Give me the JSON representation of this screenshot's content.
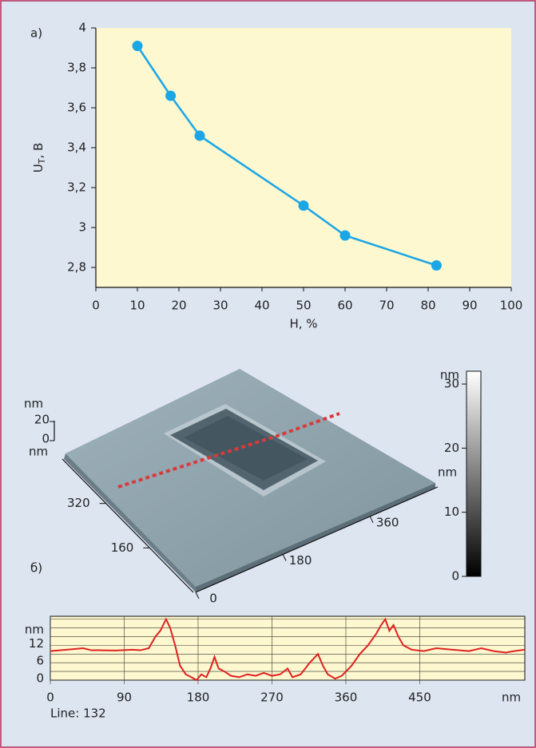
{
  "panel_a_label": "а)",
  "panel_b_label": "б)",
  "chart_data": [
    {
      "type": "line",
      "ylabel": [
        "U",
        "T",
        ", В"
      ],
      "xlabel": "Н, %",
      "x": [
        10,
        18,
        25,
        50,
        60,
        82
      ],
      "series": [
        {
          "color": "#1ba6e6",
          "values": [
            3.91,
            3.66,
            3.46,
            3.11,
            2.96,
            2.81
          ]
        }
      ],
      "xlim": [
        0,
        100
      ],
      "xticks": [
        0,
        10,
        20,
        30,
        40,
        50,
        60,
        70,
        80,
        90,
        100
      ],
      "ylim": [
        2.7,
        4
      ],
      "yticks": [
        {
          "value": 2.8,
          "label": "2,8"
        },
        3,
        {
          "value": 3.2,
          "label": "3,2"
        },
        {
          "value": 3.4,
          "label": "3,4"
        },
        {
          "value": 3.6,
          "label": "3,6"
        },
        {
          "value": 3.8,
          "label": "3,8"
        },
        4
      ]
    },
    {
      "type": "surface",
      "x_axis": {
        "label": "nm",
        "lim": [
          0,
          500
        ],
        "ticks": [
          0,
          180,
          360
        ]
      },
      "y_axis": {
        "label": "nm",
        "lim": [
          0,
          480
        ],
        "ticks": [
          160,
          320
        ]
      },
      "z_axis": {
        "label": "nm",
        "lim": [
          0,
          20
        ],
        "ticks": [
          0,
          20
        ]
      },
      "colorbar": {
        "label": "nm",
        "lim": [
          0,
          32
        ],
        "ticks": [
          0,
          10,
          20,
          30
        ]
      }
    },
    {
      "type": "profile",
      "ylabel": "nm",
      "xunit": "nm",
      "note": "Line: 132",
      "color": "#e02020",
      "x": [
        0,
        20,
        40,
        50,
        60,
        80,
        100,
        110,
        120,
        128,
        134,
        141,
        146,
        152,
        158,
        165,
        172,
        178,
        184,
        190,
        195,
        200,
        205,
        212,
        220,
        230,
        240,
        250,
        260,
        270,
        280,
        289,
        295,
        305,
        316,
        326,
        332,
        338,
        347,
        355,
        367,
        377,
        387,
        397,
        403,
        408,
        413,
        418,
        424,
        430,
        440,
        455,
        470,
        490,
        510,
        525,
        540,
        555,
        565,
        578
      ],
      "values": [
        10,
        10.5,
        11,
        10.3,
        10.3,
        10.2,
        10.5,
        10.3,
        11,
        15,
        17,
        21,
        18,
        12,
        5,
        2,
        1,
        0,
        2,
        1,
        4,
        8,
        4,
        3,
        1.5,
        1,
        2,
        1.5,
        2.5,
        1.5,
        2,
        4,
        1,
        2,
        6,
        9,
        5,
        2,
        0.5,
        1.5,
        5,
        9,
        12,
        16,
        19,
        21,
        17,
        19,
        15,
        12,
        10.5,
        10,
        11,
        10.5,
        10,
        11,
        10,
        9.5,
        10,
        10.5
      ],
      "xlim": [
        0,
        578
      ],
      "xticks": [
        0,
        90,
        180,
        270,
        360,
        450
      ],
      "ylim": [
        0,
        22
      ],
      "yticks": [
        0,
        6,
        12
      ],
      "yminor": [
        3,
        9,
        15,
        18,
        21
      ]
    }
  ]
}
